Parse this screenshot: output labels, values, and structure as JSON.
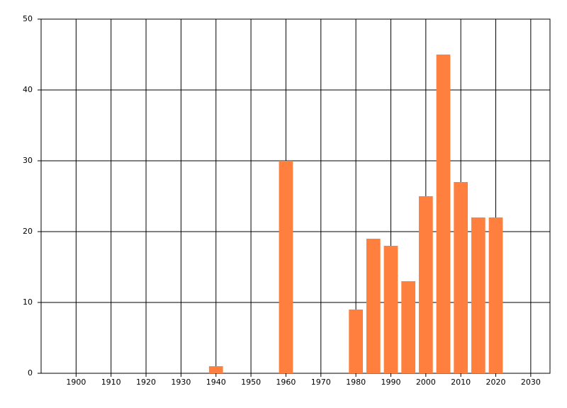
{
  "chart_data": {
    "type": "bar",
    "x": [
      1940,
      1960,
      1980,
      1985,
      1990,
      1995,
      2000,
      2005,
      2010,
      2015,
      2020
    ],
    "values": [
      1,
      30,
      9,
      19,
      18,
      13,
      25,
      45,
      27,
      22,
      22
    ],
    "color": "#ff7f3f",
    "xlim": [
      1890,
      2035.5
    ],
    "xticks": [
      1900,
      1910,
      1920,
      1930,
      1940,
      1950,
      1960,
      1970,
      1980,
      1990,
      2000,
      2010,
      2020,
      2030
    ],
    "ylim": [
      0,
      50
    ],
    "yticks": [
      0,
      10,
      20,
      30,
      40,
      50
    ],
    "grid": true
  }
}
